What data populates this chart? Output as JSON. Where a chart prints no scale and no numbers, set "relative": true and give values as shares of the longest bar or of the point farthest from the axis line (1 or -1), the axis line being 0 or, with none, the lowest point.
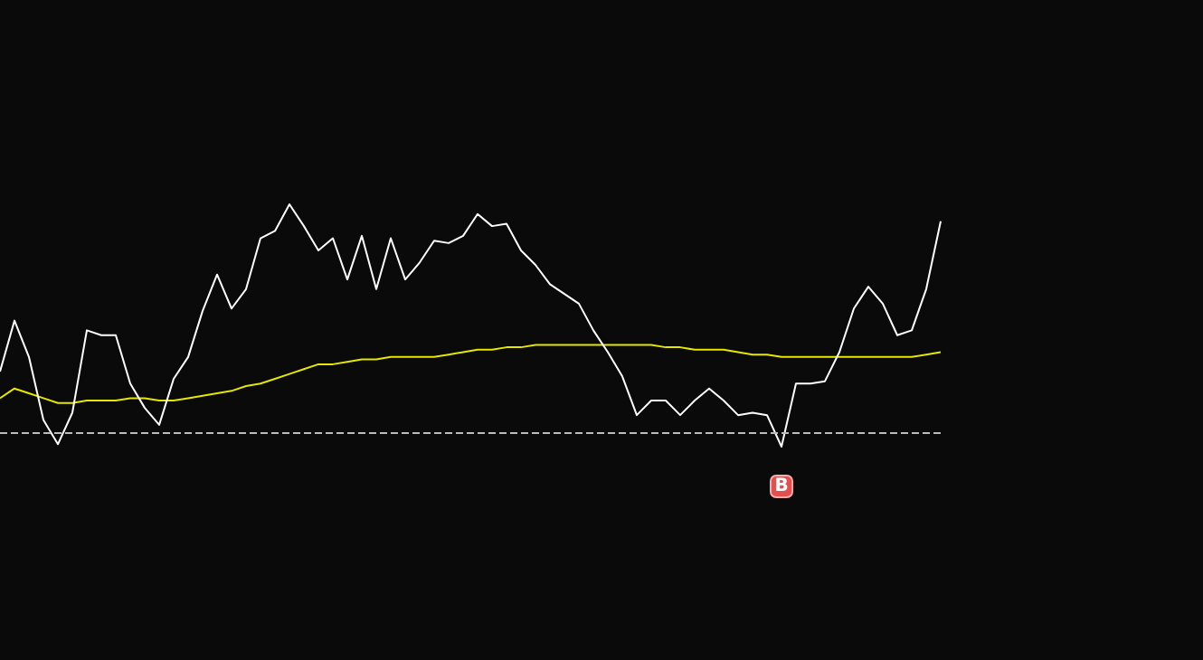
{
  "chart_data": {
    "type": "line",
    "relative": true,
    "categories": [
      null,
      null,
      null,
      null,
      null,
      null,
      null,
      null,
      null,
      null,
      null,
      null,
      null,
      null,
      null,
      null,
      null,
      null,
      null,
      null,
      null,
      null,
      null,
      null,
      null,
      null,
      null,
      null,
      null,
      null,
      null,
      null,
      null,
      null,
      null,
      null,
      null,
      null,
      null,
      null,
      null,
      null,
      null,
      null,
      null,
      null,
      null,
      null,
      null,
      null,
      null,
      null,
      null,
      null,
      null,
      null,
      null,
      null,
      null,
      null,
      null,
      null,
      null,
      null,
      null,
      null
    ],
    "series": [
      {
        "color": "#ffffff",
        "values": [
          0.31,
          0.52,
          0.37,
          0.11,
          0.01,
          0.14,
          0.48,
          0.46,
          0.46,
          0.26,
          0.16,
          0.09,
          0.28,
          0.37,
          0.56,
          0.71,
          0.57,
          0.65,
          0.86,
          0.89,
          1,
          0.91,
          0.81,
          0.86,
          0.69,
          0.87,
          0.65,
          0.86,
          0.69,
          0.76,
          0.85,
          0.84,
          0.87,
          0.96,
          0.91,
          0.92,
          0.81,
          0.75,
          0.67,
          0.63,
          0.59,
          0.48,
          0.39,
          0.29,
          0.13,
          0.19,
          0.19,
          0.13,
          0.19,
          0.24,
          0.19,
          0.13,
          0.14,
          0.13,
          0,
          0.26,
          0.26,
          0.27,
          0.39,
          0.57,
          0.66,
          0.59,
          0.46,
          0.48,
          0.65,
          0.93
        ]
      },
      {
        "color": "#e6e600",
        "values": [
          0.2,
          0.24,
          0.22,
          0.2,
          0.18,
          0.18,
          0.19,
          0.19,
          0.19,
          0.2,
          0.2,
          0.19,
          0.19,
          0.2,
          0.21,
          0.22,
          0.23,
          0.25,
          0.26,
          0.28,
          0.3,
          0.32,
          0.34,
          0.34,
          0.35,
          0.36,
          0.36,
          0.37,
          0.37,
          0.37,
          0.37,
          0.38,
          0.39,
          0.4,
          0.4,
          0.41,
          0.41,
          0.42,
          0.42,
          0.42,
          0.42,
          0.42,
          0.42,
          0.42,
          0.42,
          0.42,
          0.41,
          0.41,
          0.4,
          0.4,
          0.4,
          0.39,
          0.38,
          0.38,
          0.37,
          0.37,
          0.37,
          0.37,
          0.37,
          0.37,
          0.37,
          0.37,
          0.37,
          0.37,
          0.38,
          0.39
        ]
      }
    ],
    "ref_lines": [
      {
        "axis": "y",
        "value": 0.06,
        "color": "#bbbbbb",
        "line_style": "dashed"
      }
    ],
    "annotations": [
      "B"
    ],
    "line_style": "solid"
  }
}
